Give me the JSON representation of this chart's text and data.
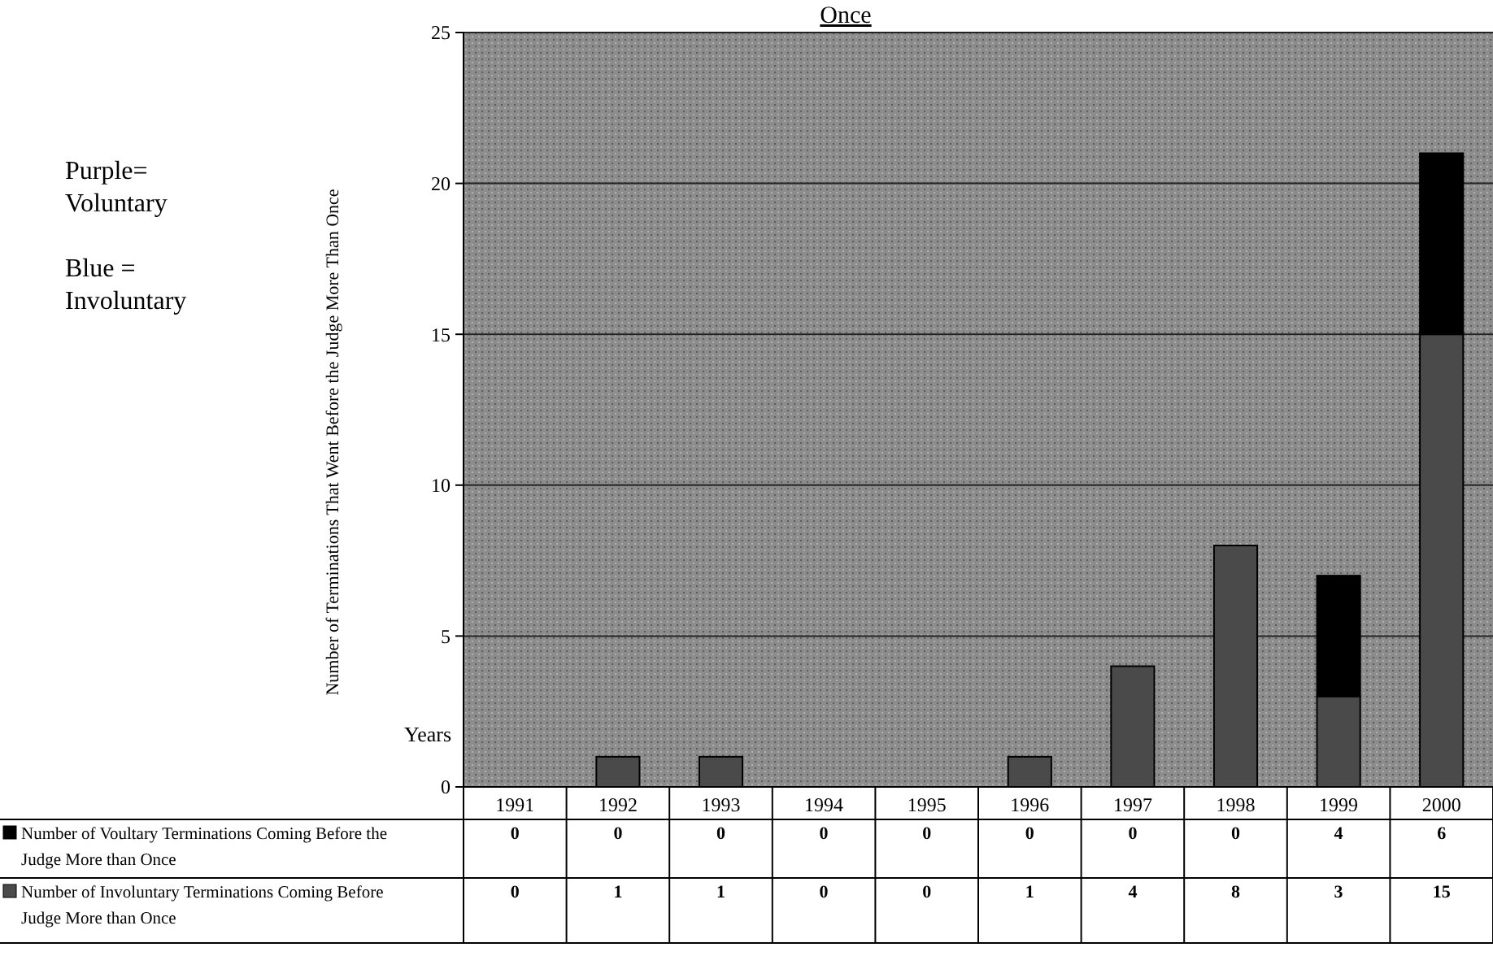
{
  "chart_data": {
    "type": "bar",
    "title": "Once",
    "xlabel": "Years",
    "ylabel": "Number of Terminations That Went Before the Judge More Than Once",
    "categories": [
      "1991",
      "1992",
      "1993",
      "1994",
      "1995",
      "1996",
      "1997",
      "1998",
      "1999",
      "2000"
    ],
    "stacked": true,
    "data_labels": true,
    "legend": "bottom left",
    "grid": "y",
    "ylim": [
      0,
      25
    ],
    "yticks": [
      0,
      5,
      10,
      15,
      20,
      25
    ],
    "series": [
      {
        "name": "Number of Involuntary Terminations Coming Before Judge More than Once",
        "color": "#4a4a4a",
        "values": [
          0,
          1,
          1,
          0,
          0,
          1,
          4,
          8,
          3,
          15
        ]
      },
      {
        "name": "Number of Voultary Terminations Coming Before the Judge More than Once",
        "color": "#000000",
        "values": [
          0,
          0,
          0,
          0,
          0,
          0,
          0,
          0,
          4,
          6
        ]
      }
    ],
    "annotations": [
      "Purple= Voluntary",
      "Blue = Involuntary"
    ]
  }
}
